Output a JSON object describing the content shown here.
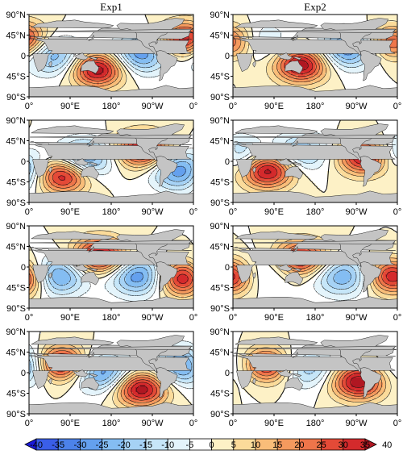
{
  "chart_data": {
    "type": "heatmap",
    "column_titles": [
      "Exp1",
      "Exp2"
    ],
    "xticks": [
      "0°",
      "90°E",
      "180°",
      "90°W",
      "0°"
    ],
    "yticks": [
      "90°N",
      "45°N",
      "0",
      "45°S",
      "90°S"
    ],
    "colorbar": {
      "levels": [
        -40,
        -35,
        -30,
        -25,
        -20,
        -15,
        -10,
        -5,
        0,
        5,
        10,
        15,
        20,
        25,
        30,
        35,
        40
      ],
      "level_labels": [
        "-40",
        "-35",
        "-30",
        "-25",
        "-20",
        "-15",
        "-10",
        "-5",
        "0",
        "5",
        "10",
        "15",
        "20",
        "25",
        "30",
        "35",
        "40"
      ],
      "colors": [
        "#1a1ad9",
        "#3a5ee8",
        "#4c82ea",
        "#64a0ee",
        "#84bdf2",
        "#a6d2f5",
        "#c6e6f8",
        "#e4f4fb",
        "#ffffff",
        "#fdf1c6",
        "#fbdb9a",
        "#f9bd79",
        "#f59a5e",
        "#ee754a",
        "#e44a37",
        "#d42a2c",
        "#b01722"
      ]
    },
    "panels": [
      {
        "row": 1,
        "column": "Exp1",
        "highs": [
          {
            "lon": 150,
            "lat": -30,
            "value": 40
          },
          {
            "lon": 340,
            "lat": 35,
            "value": 36
          }
        ],
        "lows": [
          {
            "lon": 55,
            "lat": 0,
            "value": -25
          },
          {
            "lon": 245,
            "lat": 5,
            "value": -30
          }
        ]
      },
      {
        "row": 1,
        "column": "Exp2",
        "highs": [
          {
            "lon": 150,
            "lat": -20,
            "value": 40
          },
          {
            "lon": 355,
            "lat": 30,
            "value": 30
          }
        ],
        "lows": [
          {
            "lon": 55,
            "lat": 30,
            "value": -15
          },
          {
            "lon": 250,
            "lat": 15,
            "value": -30
          }
        ]
      },
      {
        "row": 2,
        "column": "Exp1",
        "highs": [
          {
            "lon": 75,
            "lat": -30,
            "value": 40
          },
          {
            "lon": 250,
            "lat": 25,
            "value": 40
          }
        ],
        "lows": [
          {
            "lon": 120,
            "lat": 5,
            "value": -30
          },
          {
            "lon": 330,
            "lat": -20,
            "value": -30
          }
        ]
      },
      {
        "row": 2,
        "column": "Exp2",
        "highs": [
          {
            "lon": 75,
            "lat": -20,
            "value": 40
          },
          {
            "lon": 290,
            "lat": 10,
            "value": 40
          }
        ],
        "lows": [
          {
            "lon": 150,
            "lat": 20,
            "value": -20
          },
          {
            "lon": 5,
            "lat": 15,
            "value": -20
          }
        ]
      },
      {
        "row": 3,
        "column": "Exp1",
        "highs": [
          {
            "lon": 155,
            "lat": 25,
            "value": 40
          },
          {
            "lon": 340,
            "lat": -25,
            "value": 40
          }
        ],
        "lows": [
          {
            "lon": 60,
            "lat": -20,
            "value": -30
          },
          {
            "lon": 240,
            "lat": -20,
            "value": -30
          }
        ]
      },
      {
        "row": 3,
        "column": "Exp2",
        "highs": [
          {
            "lon": 150,
            "lat": 20,
            "value": 35
          },
          {
            "lon": 355,
            "lat": -20,
            "value": 40
          }
        ],
        "lows": [
          {
            "lon": 50,
            "lat": -15,
            "value": -15
          },
          {
            "lon": 240,
            "lat": -20,
            "value": -25
          }
        ]
      },
      {
        "row": 4,
        "column": "Exp1",
        "highs": [
          {
            "lon": 70,
            "lat": 20,
            "value": 40
          },
          {
            "lon": 245,
            "lat": -35,
            "value": 40
          }
        ],
        "lows": [
          {
            "lon": 160,
            "lat": 0,
            "value": -30
          },
          {
            "lon": 340,
            "lat": 15,
            "value": -30
          }
        ]
      },
      {
        "row": 4,
        "column": "Exp2",
        "highs": [
          {
            "lon": 70,
            "lat": 15,
            "value": 40
          },
          {
            "lon": 275,
            "lat": -20,
            "value": 40
          }
        ],
        "lows": [
          {
            "lon": 160,
            "lat": 10,
            "value": -20
          },
          {
            "lon": 20,
            "lat": 10,
            "value": -15
          }
        ]
      }
    ]
  }
}
